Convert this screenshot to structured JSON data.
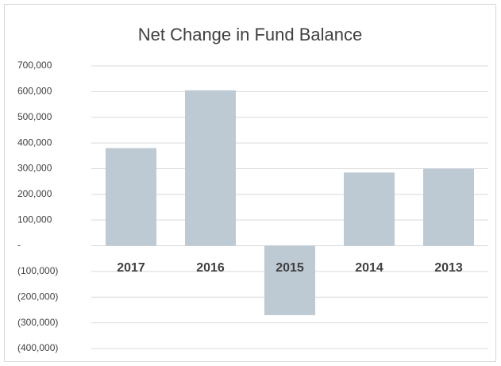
{
  "chart_data": {
    "type": "bar",
    "title": "Net Change in Fund Balance",
    "categories": [
      "2017",
      "2016",
      "2015",
      "2014",
      "2013"
    ],
    "values": [
      380000,
      605000,
      -270000,
      285000,
      300000
    ],
    "color": "#bdc9d3",
    "ylim": [
      -400000,
      700000
    ],
    "yticks": [
      {
        "value": -400000,
        "label": "(400,000)"
      },
      {
        "value": -300000,
        "label": "(300,000)"
      },
      {
        "value": -200000,
        "label": "(200,000)"
      },
      {
        "value": -100000,
        "label": "(100,000)"
      },
      {
        "value": 0,
        "label": "-"
      },
      {
        "value": 100000,
        "label": "100,000"
      },
      {
        "value": 200000,
        "label": "200,000"
      },
      {
        "value": 300000,
        "label": "300,000"
      },
      {
        "value": 400000,
        "label": "400,000"
      },
      {
        "value": 500000,
        "label": "500,000"
      },
      {
        "value": 600000,
        "label": "600,000"
      },
      {
        "value": 700000,
        "label": "700,000"
      }
    ],
    "grid": true
  }
}
